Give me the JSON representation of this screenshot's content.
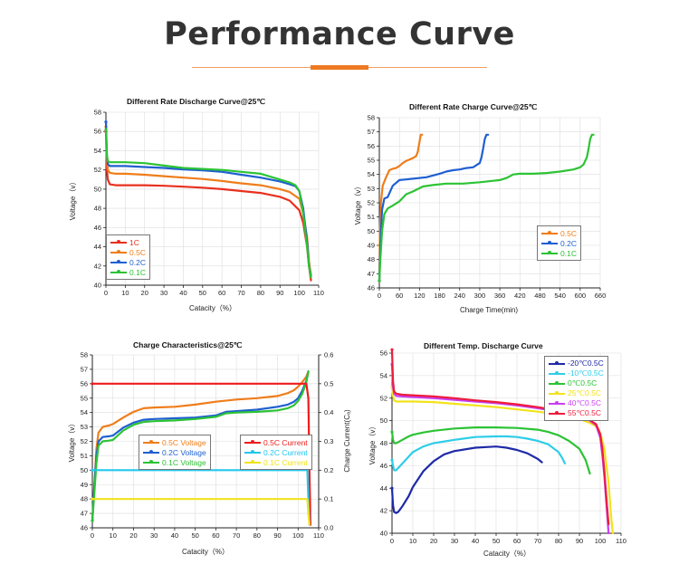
{
  "header": {
    "title": "Performance Curve"
  },
  "chart_data": [
    {
      "id": "rate_discharge",
      "type": "line",
      "title": "Different Rate Discharge Curve@25℃",
      "xlabel": "Catacity（%）",
      "ylabel": "Voltage（v）",
      "xlim": [
        0,
        110
      ],
      "ylim": [
        40,
        58
      ],
      "xticks": [
        0,
        10,
        20,
        30,
        40,
        50,
        60,
        70,
        80,
        90,
        100,
        110
      ],
      "yticks": [
        40,
        42,
        44,
        46,
        48,
        50,
        52,
        54,
        56,
        58
      ],
      "legend_position": "left",
      "series": [
        {
          "name": "1C",
          "color": "#e8301e",
          "x": [
            0,
            0.5,
            1,
            2,
            5,
            10,
            20,
            30,
            40,
            50,
            60,
            70,
            80,
            90,
            95,
            100,
            102,
            104,
            105,
            106
          ],
          "y": [
            56,
            52,
            51,
            50.5,
            50.4,
            50.4,
            50.4,
            50.35,
            50.25,
            50.15,
            50,
            49.8,
            49.6,
            49.2,
            48.8,
            47.8,
            46.5,
            44,
            42,
            40.5
          ]
        },
        {
          "name": "0.5C",
          "color": "#ef7d1a",
          "x": [
            0,
            0.5,
            1,
            2,
            5,
            10,
            20,
            30,
            40,
            50,
            60,
            70,
            80,
            90,
            95,
            100,
            102,
            104,
            105,
            106
          ],
          "y": [
            56.5,
            53,
            52,
            51.7,
            51.6,
            51.6,
            51.5,
            51.35,
            51.2,
            51.05,
            50.85,
            50.6,
            50.4,
            50,
            49.7,
            49,
            47.5,
            45,
            42.5,
            41
          ]
        },
        {
          "name": "0.2C",
          "color": "#1f5fd1",
          "x": [
            0,
            0.5,
            1,
            2,
            5,
            10,
            20,
            30,
            40,
            50,
            60,
            70,
            80,
            90,
            95,
            98,
            100,
            102,
            104,
            105,
            106
          ],
          "y": [
            57,
            53.5,
            52.6,
            52.4,
            52.4,
            52.4,
            52.3,
            52.2,
            52.05,
            51.95,
            51.8,
            51.5,
            51.2,
            50.8,
            50.5,
            50.3,
            49.8,
            48,
            44.5,
            42,
            41
          ]
        },
        {
          "name": "0.1C",
          "color": "#2cc334",
          "x": [
            0,
            0.5,
            1,
            2,
            5,
            10,
            20,
            30,
            40,
            50,
            60,
            70,
            80,
            90,
            95,
            98,
            100,
            102,
            104,
            105,
            106
          ],
          "y": [
            56.2,
            53.5,
            52.9,
            52.8,
            52.8,
            52.8,
            52.7,
            52.45,
            52.2,
            52.1,
            52,
            51.8,
            51.6,
            51,
            50.7,
            50.4,
            49.8,
            47.5,
            44,
            42,
            40.8
          ]
        }
      ]
    },
    {
      "id": "rate_charge",
      "type": "line",
      "title": "Different Rate Charge Curve@25℃",
      "xlabel": "Charge Time(min)",
      "ylabel": "Voltage（v）",
      "xlim": [
        0,
        660
      ],
      "ylim": [
        46,
        58
      ],
      "xticks": [
        0,
        60,
        120,
        180,
        240,
        300,
        360,
        420,
        480,
        540,
        600,
        660
      ],
      "yticks": [
        46,
        47,
        48,
        49,
        50,
        51,
        52,
        53,
        54,
        55,
        56,
        57,
        58
      ],
      "legend_position": "right",
      "series": [
        {
          "name": "0.5C",
          "color": "#ef7d1a",
          "x": [
            0,
            2,
            5,
            10,
            20,
            30,
            40,
            50,
            60,
            70,
            80,
            90,
            100,
            110,
            115,
            120,
            124,
            127,
            128
          ],
          "y": [
            46.5,
            50,
            52,
            53.2,
            53.8,
            54.3,
            54.4,
            54.45,
            54.6,
            54.8,
            54.95,
            55.05,
            55.15,
            55.3,
            55.6,
            56.3,
            56.8,
            56.8,
            56.8
          ]
        },
        {
          "name": "0.2C",
          "color": "#1f5fd1",
          "x": [
            0,
            3,
            8,
            15,
            25,
            40,
            60,
            80,
            100,
            140,
            180,
            200,
            220,
            240,
            260,
            280,
            300,
            305,
            310,
            315,
            320,
            325
          ],
          "y": [
            46.5,
            49,
            51.5,
            52.3,
            52.4,
            53.2,
            53.6,
            53.65,
            53.7,
            53.8,
            54.05,
            54.2,
            54.3,
            54.35,
            54.45,
            54.5,
            54.8,
            55.2,
            55.8,
            56.5,
            56.8,
            56.8
          ]
        },
        {
          "name": "0.1C",
          "color": "#2cc334",
          "x": [
            0,
            3,
            8,
            15,
            25,
            40,
            60,
            80,
            100,
            130,
            160,
            200,
            250,
            300,
            340,
            360,
            380,
            400,
            420,
            460,
            500,
            540,
            580,
            600,
            610,
            620,
            625,
            630,
            635,
            640
          ],
          "y": [
            46.5,
            48,
            50,
            51.2,
            51.6,
            51.8,
            52.1,
            52.6,
            52.8,
            53.15,
            53.25,
            53.35,
            53.35,
            53.45,
            53.55,
            53.6,
            53.75,
            54,
            54.05,
            54.05,
            54.1,
            54.2,
            54.35,
            54.5,
            54.7,
            55.2,
            55.8,
            56.5,
            56.8,
            56.8
          ]
        }
      ]
    },
    {
      "id": "charge_characteristics",
      "type": "line",
      "title": "Charge Characteristics@25℃",
      "xlabel": "Catacity（%）",
      "ylabel": "Voltage（v）",
      "y2label": "Charge Current(Cₐ)",
      "xlim": [
        0,
        110
      ],
      "ylim": [
        46,
        58
      ],
      "y2lim": [
        0,
        0.6
      ],
      "xticks": [
        0,
        10,
        20,
        30,
        40,
        50,
        60,
        70,
        80,
        90,
        100,
        110
      ],
      "yticks": [
        46,
        47,
        48,
        49,
        50,
        51,
        52,
        53,
        54,
        55,
        56,
        57,
        58
      ],
      "y2ticks": [
        0,
        0.1,
        0.2,
        0.3,
        0.4,
        0.5,
        0.6
      ],
      "legend_position": "center",
      "series": [
        {
          "name": "0.5C Voltage",
          "color": "#ef7d1a",
          "axis": "left",
          "x": [
            0,
            1,
            2,
            3,
            5,
            8,
            10,
            15,
            20,
            25,
            30,
            40,
            50,
            60,
            70,
            80,
            90,
            95,
            98,
            100,
            102,
            104,
            105
          ],
          "y": [
            46.5,
            49,
            51.5,
            52.6,
            53,
            53.1,
            53.2,
            53.65,
            54.05,
            54.3,
            54.35,
            54.4,
            54.55,
            54.75,
            54.9,
            55,
            55.15,
            55.35,
            55.55,
            55.8,
            56.1,
            56.5,
            56.85
          ]
        },
        {
          "name": "0.2C Voltage",
          "color": "#1f5fd1",
          "axis": "left",
          "x": [
            0,
            1,
            2,
            3,
            5,
            8,
            10,
            15,
            20,
            25,
            30,
            40,
            50,
            60,
            65,
            70,
            80,
            90,
            95,
            98,
            100,
            102,
            104,
            105
          ],
          "y": [
            46.5,
            49,
            51,
            52,
            52.3,
            52.35,
            52.4,
            52.95,
            53.3,
            53.5,
            53.55,
            53.6,
            53.65,
            53.8,
            54.05,
            54.1,
            54.2,
            54.4,
            54.55,
            54.75,
            55,
            55.5,
            56.2,
            56.85
          ]
        },
        {
          "name": "0.1C Voltage",
          "color": "#2cc334",
          "axis": "left",
          "x": [
            0,
            1,
            2,
            3,
            5,
            8,
            10,
            15,
            20,
            25,
            30,
            40,
            50,
            60,
            65,
            70,
            80,
            90,
            95,
            98,
            100,
            102,
            104,
            105
          ],
          "y": [
            46.5,
            48.5,
            50.5,
            51.7,
            52,
            52.05,
            52.1,
            52.75,
            53.15,
            53.35,
            53.4,
            53.45,
            53.55,
            53.7,
            53.95,
            54,
            54.05,
            54.15,
            54.3,
            54.5,
            54.8,
            55.3,
            56.1,
            56.85
          ]
        },
        {
          "name": "0.5C Current",
          "color": "#ee1c1c",
          "axis": "right",
          "x": [
            0,
            104,
            105,
            105.5,
            106
          ],
          "y": [
            0.5,
            0.5,
            0.45,
            0.2,
            0.01
          ]
        },
        {
          "name": "0.2C Current",
          "color": "#22c7ee",
          "axis": "right",
          "x": [
            0,
            104.5,
            105,
            105.5
          ],
          "y": [
            0.2,
            0.2,
            0.1,
            0.01
          ]
        },
        {
          "name": "0.1C Current",
          "color": "#f2e21c",
          "axis": "right",
          "x": [
            0,
            104.5,
            105,
            105.5
          ],
          "y": [
            0.1,
            0.1,
            0.05,
            0.01
          ]
        }
      ]
    },
    {
      "id": "temp_discharge",
      "type": "line",
      "title": "Different Temp. Discharge Curve",
      "xlabel": "Catacity（%）",
      "ylabel": "Voltage（v）",
      "xlim": [
        0,
        110
      ],
      "ylim": [
        40,
        56
      ],
      "xticks": [
        0,
        10,
        20,
        30,
        40,
        50,
        60,
        70,
        80,
        90,
        100,
        110
      ],
      "yticks": [
        40,
        42,
        44,
        46,
        48,
        50,
        52,
        54,
        56
      ],
      "legend_position": "top-right",
      "series": [
        {
          "name": "-20℃0.5C",
          "color": "#1e2aa8",
          "x": [
            0,
            0.5,
            1,
            2,
            3,
            5,
            8,
            10,
            15,
            20,
            25,
            30,
            40,
            50,
            55,
            60,
            65,
            70,
            72
          ],
          "y": [
            44,
            42.5,
            41.9,
            41.8,
            41.9,
            42.4,
            43.3,
            44.1,
            45.5,
            46.4,
            47,
            47.3,
            47.6,
            47.7,
            47.6,
            47.4,
            47.1,
            46.6,
            46.3
          ]
        },
        {
          "name": "-10℃0.5C",
          "color": "#2ecde8",
          "x": [
            0,
            0.5,
            1,
            2,
            3,
            5,
            8,
            10,
            15,
            20,
            30,
            40,
            50,
            55,
            60,
            65,
            70,
            75,
            80,
            82,
            83
          ],
          "y": [
            46.5,
            46,
            45.6,
            45.6,
            45.8,
            46.2,
            46.8,
            47.2,
            47.7,
            48,
            48.3,
            48.55,
            48.6,
            48.6,
            48.55,
            48.4,
            48.2,
            47.9,
            47.2,
            46.6,
            46.2
          ]
        },
        {
          "name": "0℃0.5C",
          "color": "#2cc334",
          "x": [
            0,
            0.5,
            1,
            2,
            3,
            5,
            8,
            10,
            15,
            20,
            30,
            40,
            50,
            60,
            70,
            75,
            80,
            85,
            90,
            93,
            95
          ],
          "y": [
            49,
            48.3,
            48,
            48,
            48.1,
            48.3,
            48.6,
            48.75,
            48.95,
            49.1,
            49.3,
            49.4,
            49.4,
            49.35,
            49.2,
            49,
            48.7,
            48.2,
            47.5,
            46.5,
            45.3
          ]
        },
        {
          "name": "25℃0.5C",
          "color": "#f2e21c",
          "x": [
            0,
            0.5,
            1,
            2,
            5,
            10,
            20,
            30,
            40,
            50,
            60,
            70,
            80,
            90,
            95,
            98,
            100,
            102,
            104,
            105,
            106
          ],
          "y": [
            53,
            52.2,
            51.8,
            51.7,
            51.7,
            51.7,
            51.65,
            51.5,
            51.35,
            51.2,
            51,
            50.8,
            50.55,
            50.15,
            49.8,
            49.5,
            48.9,
            47.5,
            44.5,
            42,
            40
          ]
        },
        {
          "name": "40℃0.5C",
          "color": "#c93ff0",
          "x": [
            0,
            0.5,
            1,
            2,
            5,
            10,
            20,
            30,
            40,
            50,
            60,
            70,
            80,
            90,
            95,
            98,
            100,
            101,
            102,
            103,
            104
          ],
          "y": [
            55,
            53,
            52.4,
            52.2,
            52.15,
            52.1,
            52,
            51.85,
            51.7,
            51.55,
            51.35,
            51.1,
            50.8,
            50.35,
            50,
            49.6,
            48.5,
            47,
            45,
            42.5,
            40
          ]
        },
        {
          "name": "55℃0.5C",
          "color": "#ee1c3c",
          "x": [
            0,
            0.5,
            1,
            2,
            5,
            10,
            20,
            30,
            40,
            50,
            60,
            70,
            80,
            90,
            95,
            98,
            100,
            101,
            102,
            103,
            104
          ],
          "y": [
            56.3,
            53.5,
            52.6,
            52.4,
            52.3,
            52.25,
            52.15,
            52,
            51.8,
            51.65,
            51.45,
            51.2,
            50.9,
            50.4,
            50.05,
            49.7,
            48.8,
            47.5,
            45.5,
            43,
            40.8
          ]
        }
      ]
    }
  ]
}
